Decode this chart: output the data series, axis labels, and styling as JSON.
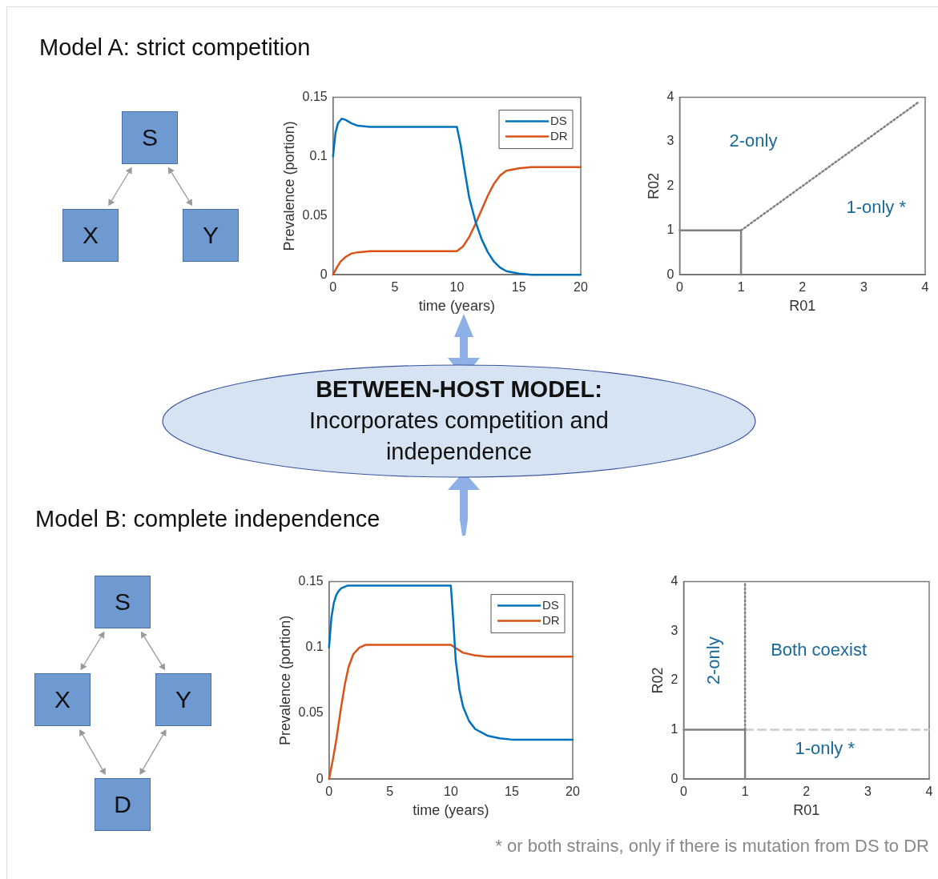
{
  "chart_data": [
    {
      "type": "other",
      "title": "Model A: strict competition",
      "annotations": [
        "S",
        "X",
        "Y"
      ]
    },
    {
      "type": "line",
      "xlabel": "time (years)",
      "ylabel": "Prevalence (portion)",
      "xlim": [
        0,
        20
      ],
      "xticks": [
        0,
        5,
        10,
        15,
        20
      ],
      "ylim": [
        0,
        0.15
      ],
      "yticks": [
        0,
        0.05,
        0.1,
        0.15
      ],
      "grid": false,
      "legend": "top right",
      "marker": "none",
      "line_style": "solid",
      "series": [
        {
          "name": "DS",
          "color": "#0072bd",
          "x": [
            0,
            0.2,
            0.4,
            0.7,
            1,
            1.5,
            2,
            3,
            4,
            5,
            10,
            10.3,
            10.6,
            11,
            11.5,
            12,
            12.5,
            13,
            13.5,
            14,
            15,
            16,
            20
          ],
          "values": [
            0.1,
            0.12,
            0.128,
            0.132,
            0.131,
            0.128,
            0.126,
            0.125,
            0.125,
            0.125,
            0.125,
            0.11,
            0.09,
            0.065,
            0.045,
            0.03,
            0.019,
            0.011,
            0.006,
            0.003,
            0.001,
            0,
            0
          ]
        },
        {
          "name": "DR",
          "color": "#d95319",
          "x": [
            0,
            0.3,
            0.6,
            1,
            1.5,
            2,
            3,
            5,
            10,
            10.5,
            11,
            11.5,
            12,
            12.5,
            13,
            13.5,
            14,
            15,
            16,
            20
          ],
          "values": [
            0,
            0.006,
            0.011,
            0.015,
            0.018,
            0.019,
            0.02,
            0.02,
            0.02,
            0.024,
            0.032,
            0.043,
            0.055,
            0.067,
            0.077,
            0.084,
            0.088,
            0.09,
            0.091,
            0.091
          ]
        }
      ]
    },
    {
      "type": "line",
      "xlabel": "R01",
      "ylabel": "R02",
      "xlim": [
        0,
        4
      ],
      "xticks": [
        0,
        1,
        2,
        3,
        4
      ],
      "ylim": [
        0,
        4
      ],
      "yticks": [
        0,
        1,
        2,
        3,
        4
      ],
      "grid": false,
      "marker": "none",
      "annotations": [
        "2-only",
        "1-only *"
      ],
      "series": [
        {
          "type": "line",
          "color": "#808080",
          "line_style": "solid",
          "x": [
            0,
            1,
            1
          ],
          "values": [
            1,
            1,
            0
          ]
        },
        {
          "type": "line",
          "color": "#808080",
          "line_style": "dotted",
          "x": [
            1,
            3.9
          ],
          "values": [
            1,
            3.9
          ]
        }
      ]
    },
    {
      "type": "other",
      "title": "BETWEEN-HOST MODEL:",
      "annotations": [
        "Incorporates competition and independence"
      ]
    },
    {
      "type": "other",
      "title": "Model B: complete independence",
      "annotations": [
        "S",
        "X",
        "Y",
        "D"
      ]
    },
    {
      "type": "line",
      "xlabel": "time (years)",
      "ylabel": "Prevalence (portion)",
      "xlim": [
        0,
        20
      ],
      "xticks": [
        0,
        5,
        10,
        15,
        20
      ],
      "ylim": [
        0,
        0.15
      ],
      "yticks": [
        0,
        0.05,
        0.1,
        0.15
      ],
      "grid": false,
      "legend": "top right",
      "marker": "none",
      "line_style": "solid",
      "series": [
        {
          "name": "DS",
          "color": "#0072bd",
          "x": [
            0,
            0.2,
            0.4,
            0.6,
            0.8,
            1,
            1.5,
            2,
            10,
            10.2,
            10.4,
            10.7,
            11,
            11.5,
            12,
            13,
            14,
            15,
            20
          ],
          "values": [
            0.1,
            0.123,
            0.134,
            0.14,
            0.143,
            0.145,
            0.147,
            0.147,
            0.147,
            0.12,
            0.09,
            0.068,
            0.055,
            0.044,
            0.038,
            0.033,
            0.031,
            0.03,
            0.03
          ]
        },
        {
          "name": "DR",
          "color": "#d95319",
          "x": [
            0,
            0.3,
            0.6,
            1,
            1.3,
            1.6,
            2,
            2.5,
            3,
            4,
            10,
            10.5,
            11,
            12,
            13,
            20
          ],
          "values": [
            0,
            0.014,
            0.03,
            0.055,
            0.072,
            0.085,
            0.095,
            0.1,
            0.102,
            0.102,
            0.102,
            0.099,
            0.096,
            0.094,
            0.093,
            0.093
          ]
        }
      ]
    },
    {
      "type": "line",
      "xlabel": "R01",
      "ylabel": "R02",
      "xlim": [
        0,
        4
      ],
      "xticks": [
        0,
        1,
        2,
        3,
        4
      ],
      "ylim": [
        0,
        4
      ],
      "yticks": [
        0,
        1,
        2,
        3,
        4
      ],
      "grid": false,
      "marker": "none",
      "annotations": [
        "2-only",
        "Both coexist",
        "1-only *",
        "* or both strains, only if there is mutation from DS to DR"
      ],
      "series": [
        {
          "type": "line",
          "color": "#808080",
          "line_style": "solid",
          "x": [
            0,
            1,
            1
          ],
          "values": [
            1,
            1,
            0
          ]
        },
        {
          "type": "line",
          "color": "#808080",
          "line_style": "dotted",
          "x": [
            1,
            1
          ],
          "values": [
            1,
            4
          ]
        },
        {
          "type": "line",
          "color": "#cccccc",
          "line_style": "dashed",
          "x": [
            1,
            4
          ],
          "values": [
            1,
            1
          ]
        }
      ]
    }
  ]
}
